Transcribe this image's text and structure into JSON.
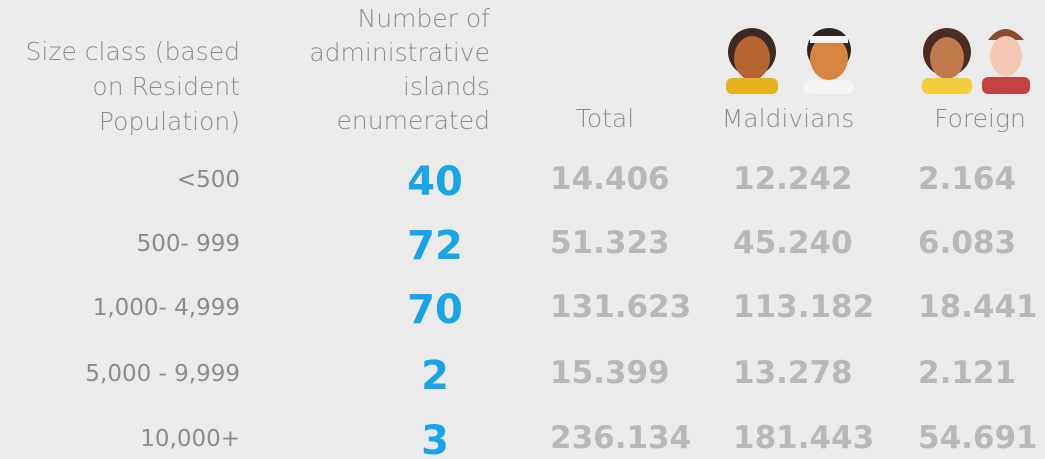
{
  "header": {
    "size_class": [
      "Size class (based",
      "on Resident",
      "Population)"
    ],
    "islands": [
      "Number of",
      "administrative",
      "islands",
      "enumerated"
    ],
    "total": "Total",
    "maldivians": "Maldivians",
    "foreign": "Foreign"
  },
  "table": {
    "rows": [
      [
        "<500",
        "40",
        "14.406",
        "12.242",
        "2.164"
      ],
      [
        "500- 999",
        "72",
        "51.323",
        "45.240",
        "6.083"
      ],
      [
        "1,000- 4,999",
        "70",
        "131.623",
        "113.182",
        "18.441"
      ],
      [
        "5,000 - 9,999",
        "2",
        "15.399",
        "13.278",
        "2.121"
      ],
      [
        "10,000+",
        "3",
        "236.134",
        "181.443",
        "54.691"
      ]
    ]
  }
}
